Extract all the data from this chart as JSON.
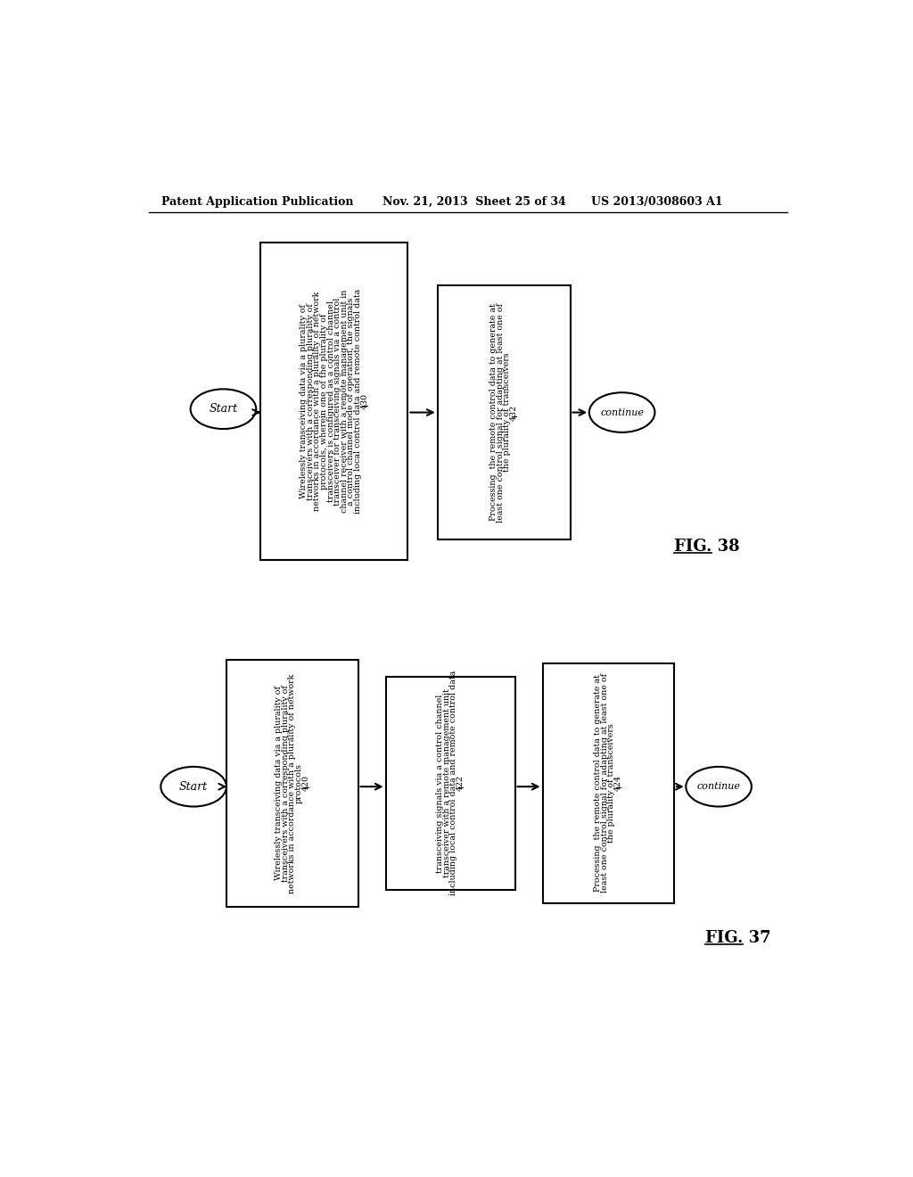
{
  "header_left": "Patent Application Publication",
  "header_mid": "Nov. 21, 2013  Sheet 25 of 34",
  "header_right": "US 2013/0308603 A1",
  "bg_color": "#ffffff",
  "text_color": "#000000",
  "fig38": {
    "label": "FIG. 38",
    "start_label": "Start",
    "continue_label": "continue",
    "box1_lines": [
      "Wirelessly transceiving data via a plurality of",
      "transceivers with a corresponding plurality of",
      "networks in accordance with a plurality of network",
      "protocols, wherein one of the plurality of",
      "transceivers is configured as a control channel",
      "transceiver for transceiving signals via a control",
      "channel receiver with a remote management unit in",
      "a control channel mode of operation, the signals",
      "including local control data and remote control data"
    ],
    "box1_num": "430",
    "box2_lines": [
      "Processing  the remote control data to generate at",
      "least one control signal for adapting at least one of",
      "the plurality of transceivers"
    ],
    "box2_num": "432"
  },
  "fig37": {
    "label": "FIG. 37",
    "start_label": "Start",
    "continue_label": "continue",
    "box1_lines": [
      "Wirelessly transceiving data via a plurality of",
      "transceivers with a corresponding plurality of",
      "networks in accordance with a plurality of network",
      "protocols"
    ],
    "box1_num": "420",
    "box2_lines": [
      "transceiving signals via a control channel",
      "transceiver with a remote management unit",
      "including local control data and remote control data"
    ],
    "box2_num": "422",
    "box3_lines": [
      "Processing  the remote control data to generate at",
      "least one control signal for adapting at least one of",
      "the plurality of transceivers"
    ],
    "box3_num": "424"
  }
}
